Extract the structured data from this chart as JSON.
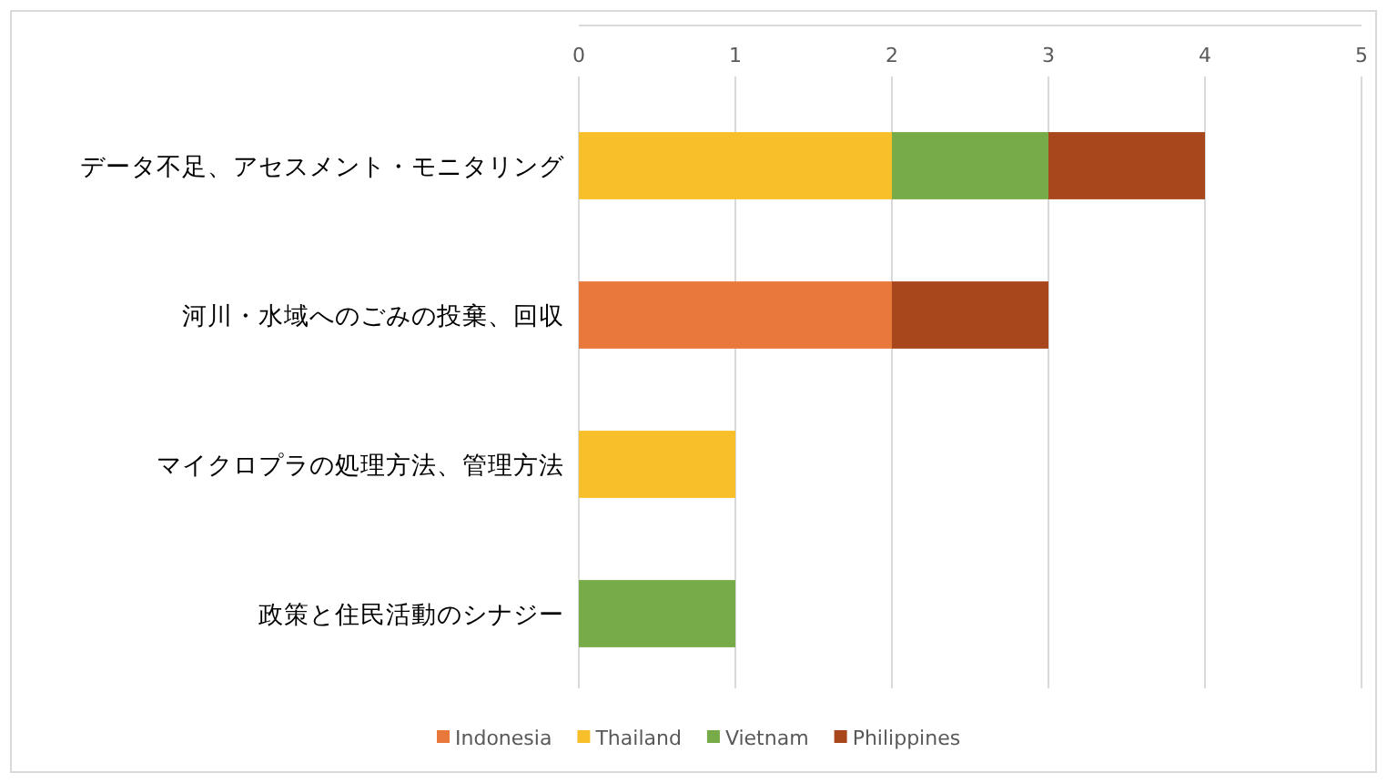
{
  "chart_data": {
    "type": "bar",
    "orientation": "horizontal",
    "stacked": true,
    "grid": "x",
    "legend": "bottom",
    "categories": [
      "データ不足、アセスメント・モニタリング",
      "河川・水域へのごみの投棄、回収",
      "マイクロプラの処理方法、管理方法",
      "政策と住民活動のシナジー"
    ],
    "xlim": [
      0,
      5
    ],
    "xticks": [
      0,
      1,
      2,
      3,
      4,
      5
    ],
    "series": [
      {
        "name": "Indonesia",
        "color": "#e8793a",
        "values": [
          null,
          2,
          null,
          null
        ]
      },
      {
        "name": "Thailand",
        "color": "#f7bf2a",
        "values": [
          2,
          null,
          1,
          null
        ]
      },
      {
        "name": "Vietnam",
        "color": "#76ab48",
        "values": [
          1,
          null,
          null,
          1
        ]
      },
      {
        "name": "Philippines",
        "color": "#a8461c",
        "values": [
          1,
          1,
          null,
          null
        ]
      }
    ]
  }
}
